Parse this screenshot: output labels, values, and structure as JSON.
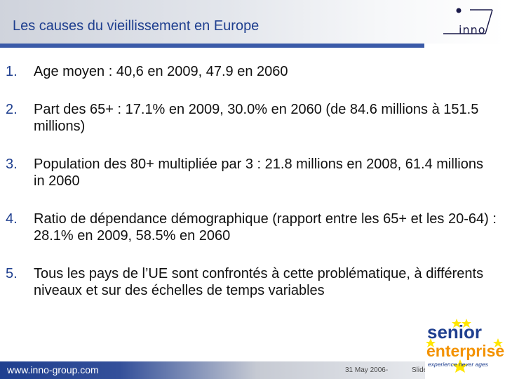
{
  "header": {
    "title": "Les causes du vieillissement en Europe",
    "logo_text": "inno"
  },
  "items": [
    {
      "num": "1.",
      "text": "Age moyen : 40,6 en 2009, 47.9 en 2060"
    },
    {
      "num": "2.",
      "text": "Part des 65+ : 17.1% en 2009, 30.0% en 2060 (de 84.6 millions à 151.5 millions)"
    },
    {
      "num": "3.",
      "text": "Population des 80+ multipliée par 3 : 21.8 millions en 2008, 61.4 millions in 2060"
    },
    {
      "num": "4.",
      "text": "Ratio de dépendance démographique (rapport entre les 65+ et les 20-64) : 28.1% en 2009, 58.5% en 2060"
    },
    {
      "num": "5.",
      "text": "Tous les pays de l’UE sont confrontés à cette problématique, à différents niveaux et sur des échelles de temps variables"
    }
  ],
  "footer": {
    "url": "www.inno-group.com",
    "date": "31 May 2006-",
    "slide": "Slide"
  },
  "badge": {
    "line1": "senior",
    "line2": "enterprise",
    "tagline": "experience never ages"
  },
  "colors": {
    "accent": "#1f3f8f",
    "badge_orange": "#f39200",
    "badge_yellow": "#ffe600"
  }
}
